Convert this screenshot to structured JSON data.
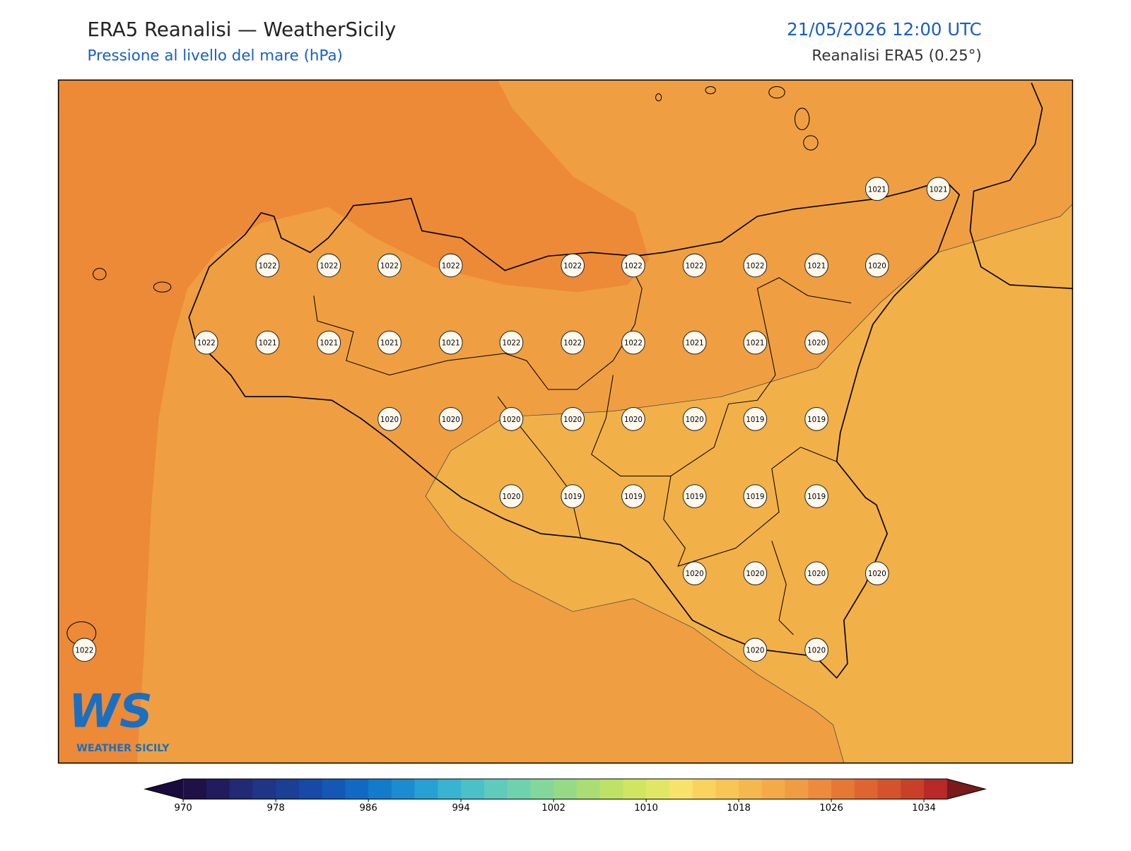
{
  "header": {
    "title": "ERA5 Reanalisi — WeatherSicily",
    "subtitle": "Pressione al livello del mare (hPa)",
    "datetime": "21/05/2026 12:00 UTC",
    "source": "Reanalisi ERA5 (0.25°)"
  },
  "stations": [
    1021,
    1021,
    1022,
    1022,
    1022,
    1022,
    1022,
    1022,
    1022,
    1022,
    1021,
    1020,
    1022,
    1021,
    1021,
    1021,
    1021,
    1022,
    1022,
    1022,
    1021,
    1021,
    1020,
    1020,
    1020,
    1020,
    1020,
    1020,
    1020,
    1019,
    1019,
    1020,
    1019,
    1019,
    1019,
    1019,
    1019,
    1020,
    1020,
    1020,
    1020,
    1022,
    1020,
    1020
  ],
  "colorbar": {
    "range": [
      970,
      1036
    ],
    "ticks": [
      970,
      978,
      986,
      994,
      1002,
      1010,
      1018,
      1026,
      1034
    ],
    "colors": [
      "#1f1048",
      "#221b5e",
      "#222a74",
      "#1f3585",
      "#1a3f95",
      "#1749a6",
      "#1458b6",
      "#106ac4",
      "#127ccb",
      "#1a8ccf",
      "#27a0d3",
      "#38b4d0",
      "#4ac0c8",
      "#5ecbbd",
      "#6fd2af",
      "#82d79b",
      "#95db87",
      "#aade73",
      "#bde265",
      "#d0e660",
      "#e2e665",
      "#f7e36a",
      "#fad35e",
      "#f8c655",
      "#f5b84e",
      "#f2ab47",
      "#ef9c42",
      "#ec8b3c",
      "#e67836",
      "#df6530",
      "#d5532c",
      "#c94029",
      "#b82a27"
    ],
    "under_color": "#1a0b3e",
    "over_color": "#7a1a1a"
  },
  "logo": {
    "text": "WS",
    "caption": "WEATHER SICILY"
  }
}
